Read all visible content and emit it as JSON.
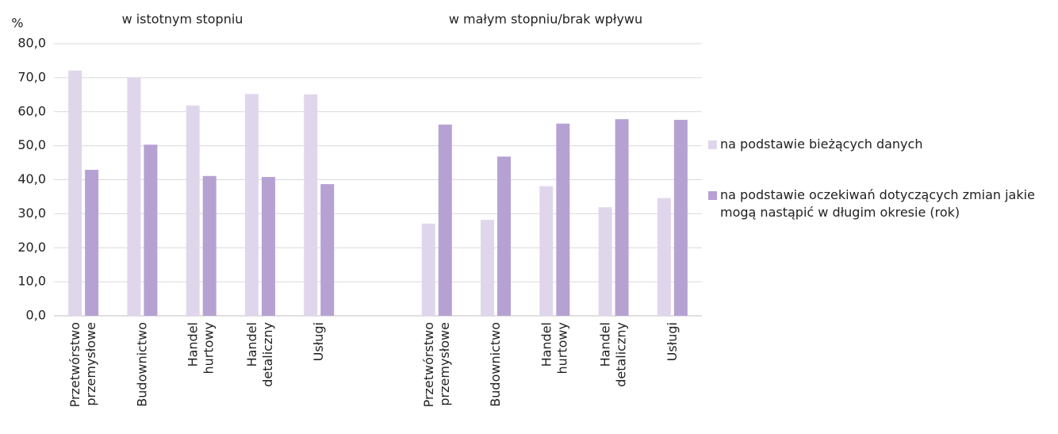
{
  "chart_data": {
    "type": "bar",
    "y_label": "%",
    "annotations": [
      "w istotnym stopniu",
      "w małym stopniu/brak wpływu"
    ],
    "categories": [
      "Przetwórstwo przemysłowe",
      "Budownictwo",
      "Handel hurtowy",
      "Handel detaliczny",
      "Usługi",
      null,
      "Przetwórstwo przemysłowe",
      "Budownictwo",
      "Handel hurtowy",
      "Handel detaliczny",
      "Usługi"
    ],
    "series": [
      {
        "name": "na podstawie bieżących danych",
        "color": "#e0d6ec",
        "values": [
          72.1,
          70.0,
          61.8,
          65.2,
          65.1,
          null,
          27.1,
          28.2,
          38.1,
          31.9,
          34.6
        ]
      },
      {
        "name": "na podstawie oczekiwań dotyczących zmian jakie mogą nastąpić w długim okresie (rok)",
        "color": "#b6a1d3",
        "values": [
          42.9,
          50.3,
          41.1,
          40.8,
          38.7,
          null,
          56.2,
          46.8,
          56.5,
          57.8,
          57.6
        ]
      }
    ],
    "ylim": [
      0,
      80
    ],
    "yticks": [
      {
        "value": 0,
        "label": "0,0"
      },
      {
        "value": 10,
        "label": "10,0"
      },
      {
        "value": 20,
        "label": "20,0"
      },
      {
        "value": 30,
        "label": "30,0"
      },
      {
        "value": 40,
        "label": "40,0"
      },
      {
        "value": 50,
        "label": "50,0"
      },
      {
        "value": 60,
        "label": "60,0"
      },
      {
        "value": 70,
        "label": "70,0"
      },
      {
        "value": 80,
        "label": "80,0"
      }
    ],
    "grid": true,
    "legend": "right"
  }
}
